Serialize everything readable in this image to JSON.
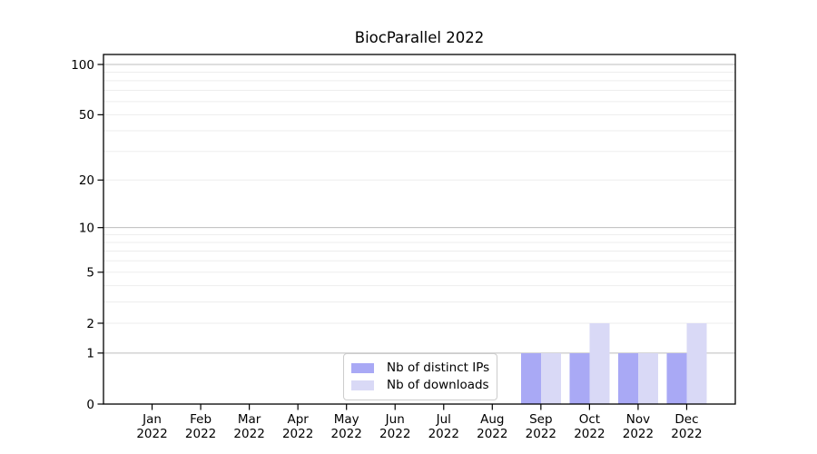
{
  "chart_data": {
    "type": "bar",
    "title": "BiocParallel 2022",
    "categories_months": [
      "Jan",
      "Feb",
      "Mar",
      "Apr",
      "May",
      "Jun",
      "Jul",
      "Aug",
      "Sep",
      "Oct",
      "Nov",
      "Dec"
    ],
    "categories_year": "2022",
    "series": [
      {
        "name": "Nb of distinct IPs",
        "color": "#a9a9f5",
        "values": [
          0,
          0,
          0,
          0,
          0,
          0,
          0,
          0,
          1,
          1,
          1,
          1
        ]
      },
      {
        "name": "Nb of downloads",
        "color": "#d9d9f6",
        "values": [
          0,
          0,
          0,
          0,
          0,
          0,
          0,
          0,
          1,
          2,
          1,
          2
        ]
      }
    ],
    "yscale": "log10(1+x)",
    "ylim": [
      0,
      100
    ],
    "yticks": [
      0,
      1,
      2,
      5,
      10,
      20,
      50,
      100
    ],
    "grid": {
      "minor_values": [
        2,
        3,
        4,
        5,
        6,
        7,
        8,
        9,
        20,
        30,
        40,
        50,
        60,
        70,
        80,
        90
      ],
      "major_values": [
        1,
        10,
        100
      ],
      "minor_color": "#ededed",
      "major_color": "#bdbdbd"
    },
    "legend": {
      "position": "lower center"
    },
    "axis_color": "#000000",
    "background": "#ffffff"
  }
}
